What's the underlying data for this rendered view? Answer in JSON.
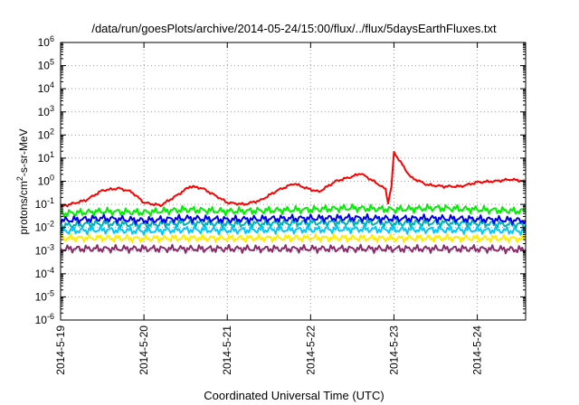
{
  "chart_data": {
    "type": "line",
    "title": "/data/run/goesPlots/archive/2014-05-24/15:00/flux/../flux/5daysEarthFluxes.txt",
    "xlabel": "Coordinated Universal Time (UTC)",
    "ylabel_parts": [
      "protons/cm",
      "2",
      "-s-sr-MeV"
    ],
    "x_ticks": [
      "2014-5-19",
      "2014-5-20",
      "2014-5-21",
      "2014-5-22",
      "2014-5-23",
      "2014-5-24"
    ],
    "x_range_days": [
      0,
      5.58
    ],
    "y_scale": "log",
    "y_ticks": [
      -6,
      -5,
      -4,
      -3,
      -2,
      -1,
      0,
      1,
      2,
      3,
      4,
      5,
      6
    ],
    "ylim": [
      1e-06,
      1000000.0
    ],
    "grid": true,
    "legend": "none",
    "series": [
      {
        "color": "#ff0000",
        "x": [
          0,
          0.3,
          0.5,
          0.7,
          0.85,
          1.0,
          1.2,
          1.4,
          1.55,
          1.7,
          1.85,
          2.0,
          2.2,
          2.4,
          2.6,
          2.8,
          2.95,
          3.1,
          3.3,
          3.5,
          3.6,
          3.8,
          3.9,
          3.93,
          3.97,
          4.0,
          4.2,
          4.4,
          4.6,
          4.8,
          5.0,
          5.2,
          5.4,
          5.58
        ],
        "y": [
          0.08,
          0.15,
          0.4,
          0.5,
          0.35,
          0.12,
          0.09,
          0.25,
          0.6,
          0.5,
          0.25,
          0.12,
          0.1,
          0.15,
          0.4,
          0.8,
          0.5,
          0.35,
          1.0,
          1.6,
          2.2,
          0.8,
          0.45,
          0.12,
          0.6,
          18,
          1.5,
          0.7,
          0.6,
          0.6,
          0.9,
          1.0,
          1.2,
          1.0
        ]
      },
      {
        "color": "#00ee00",
        "x": [
          0,
          0.5,
          1.0,
          1.5,
          2.0,
          2.5,
          3.0,
          3.5,
          4.0,
          4.5,
          5.0,
          5.58
        ],
        "y": [
          0.04,
          0.05,
          0.045,
          0.06,
          0.05,
          0.055,
          0.06,
          0.07,
          0.06,
          0.07,
          0.06,
          0.05
        ]
      },
      {
        "color": "#00b3b3",
        "x": [
          0,
          0.5,
          1.0,
          1.5,
          2.0,
          2.5,
          3.0,
          3.5,
          4.0,
          4.5,
          5.0,
          5.58
        ],
        "y": [
          0.012,
          0.015,
          0.013,
          0.016,
          0.014,
          0.015,
          0.016,
          0.017,
          0.015,
          0.016,
          0.015,
          0.013
        ]
      },
      {
        "color": "#0000ee",
        "x": [
          0,
          0.5,
          1.0,
          1.5,
          2.0,
          2.5,
          3.0,
          3.5,
          4.0,
          4.5,
          5.0,
          5.58
        ],
        "y": [
          0.02,
          0.025,
          0.02,
          0.025,
          0.022,
          0.024,
          0.025,
          0.026,
          0.024,
          0.025,
          0.023,
          0.02
        ]
      },
      {
        "color": "#00c8ff",
        "x": [
          0,
          0.5,
          1.0,
          1.5,
          2.0,
          2.5,
          3.0,
          3.5,
          4.0,
          4.5,
          5.0,
          5.58
        ],
        "y": [
          0.007,
          0.008,
          0.007,
          0.008,
          0.0075,
          0.008,
          0.008,
          0.0085,
          0.008,
          0.008,
          0.0078,
          0.007
        ]
      },
      {
        "color": "#ffee00",
        "x": [
          0,
          0.5,
          1.0,
          1.5,
          2.0,
          2.5,
          3.0,
          3.5,
          4.0,
          4.5,
          5.0,
          5.58
        ],
        "y": [
          0.0035,
          0.0035,
          0.0033,
          0.0035,
          0.0034,
          0.0035,
          0.0035,
          0.0035,
          0.0034,
          0.0035,
          0.0034,
          0.0033
        ]
      },
      {
        "color": "#8b2a6b",
        "x": [
          0,
          0.5,
          1.0,
          1.5,
          2.0,
          2.5,
          3.0,
          3.5,
          4.0,
          4.5,
          5.0,
          5.58
        ],
        "y": [
          0.0012,
          0.0012,
          0.0012,
          0.0012,
          0.0012,
          0.0012,
          0.0012,
          0.0012,
          0.0012,
          0.0012,
          0.0012,
          0.0011
        ]
      }
    ]
  }
}
